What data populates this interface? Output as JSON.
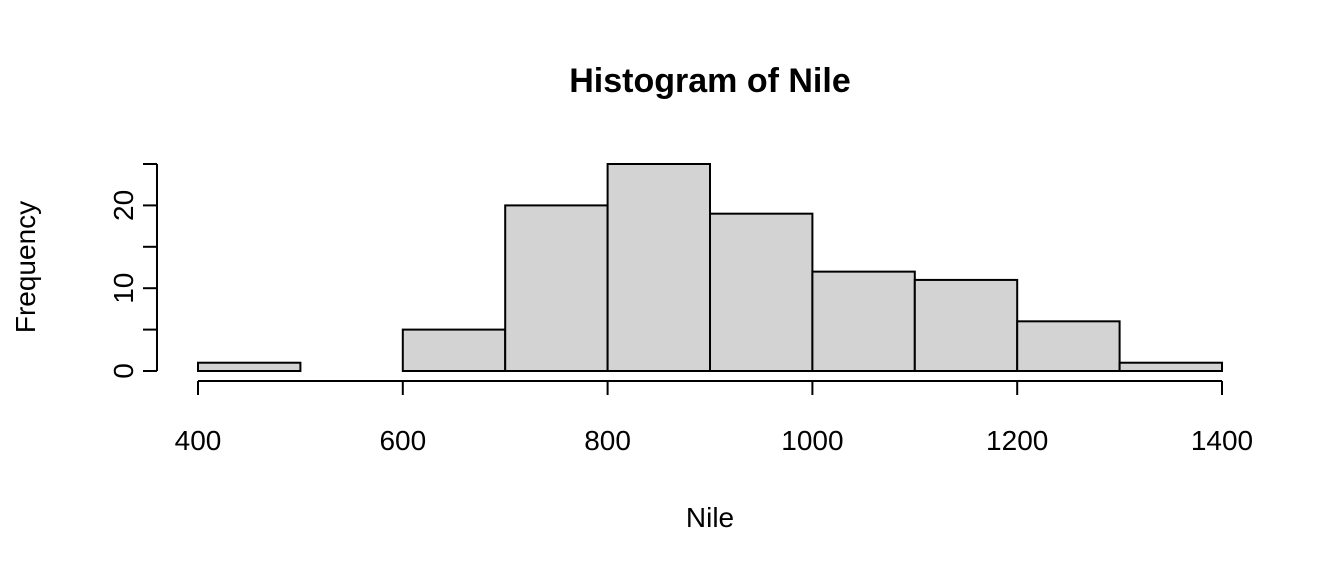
{
  "chart_data": {
    "type": "bar",
    "title": "Histogram of Nile",
    "xlabel": "Nile",
    "ylabel": "Frequency",
    "bins": [
      {
        "from": 400,
        "to": 500,
        "count": 1
      },
      {
        "from": 500,
        "to": 600,
        "count": 0
      },
      {
        "from": 600,
        "to": 700,
        "count": 5
      },
      {
        "from": 700,
        "to": 800,
        "count": 20
      },
      {
        "from": 800,
        "to": 900,
        "count": 25
      },
      {
        "from": 900,
        "to": 1000,
        "count": 19
      },
      {
        "from": 1000,
        "to": 1100,
        "count": 12
      },
      {
        "from": 1100,
        "to": 1200,
        "count": 11
      },
      {
        "from": 1200,
        "to": 1300,
        "count": 6
      },
      {
        "from": 1300,
        "to": 1400,
        "count": 1
      }
    ],
    "x_ticks": [
      "400",
      "600",
      "800",
      "1000",
      "1200",
      "1400"
    ],
    "y_ticks": [
      "0",
      "10",
      "20"
    ],
    "y_minor_ticks": [
      5,
      15,
      25
    ],
    "xlim": [
      400,
      1400
    ],
    "ylim": [
      0,
      25
    ],
    "bar_color": "#d3d3d3",
    "grid": false,
    "legend": "none"
  }
}
